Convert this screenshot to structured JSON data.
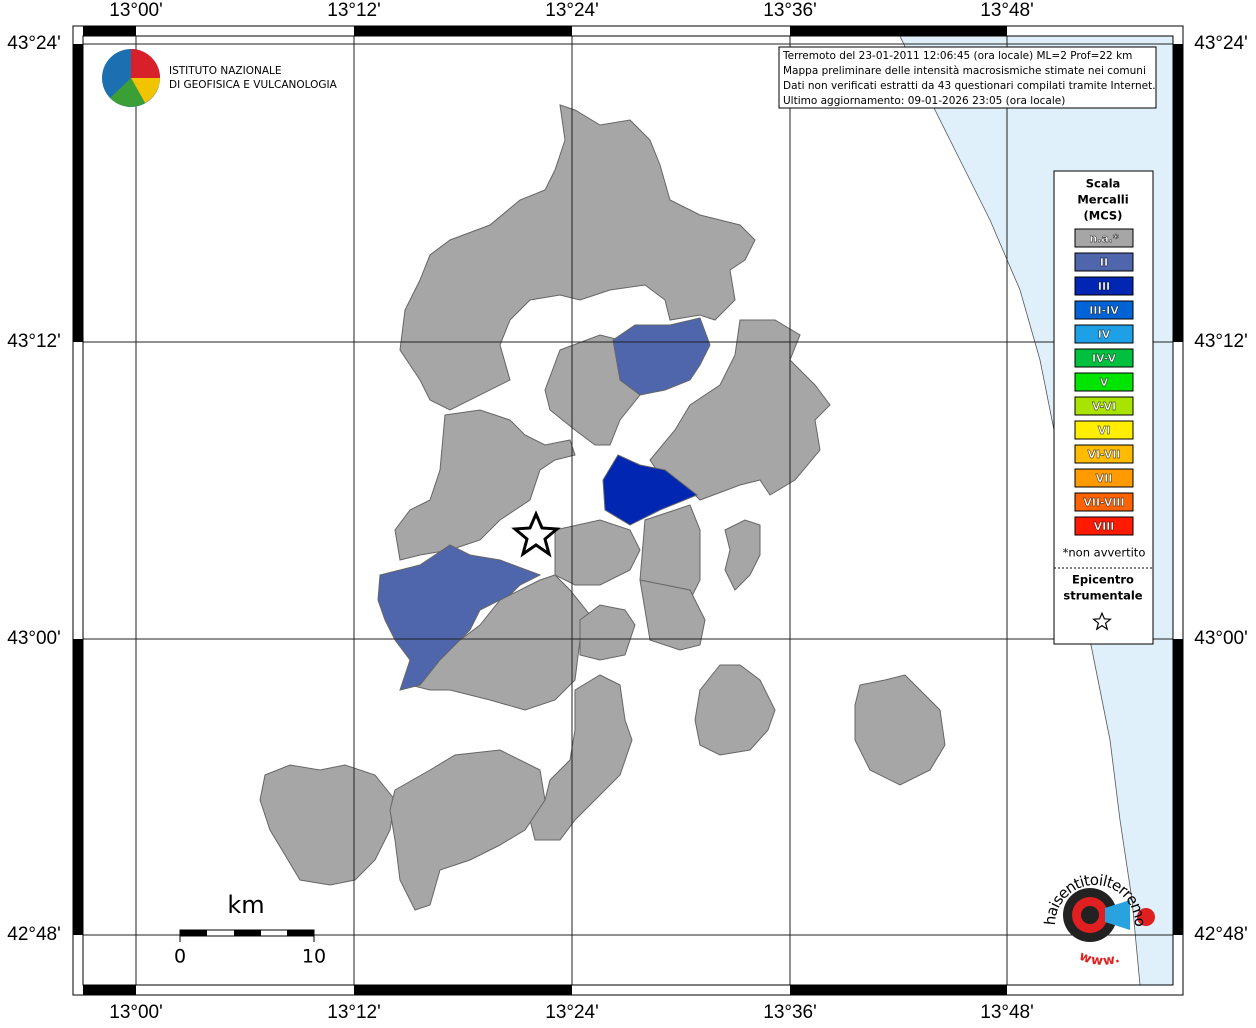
{
  "info": {
    "lines": [
      "Terremoto del 23-01-2011 12:06:45 (ora locale) ML=2 Prof=22 km",
      "Mappa preliminare delle intensità macrosismiche stimate nei comuni",
      "Dati non verificati estratti da 43 questionari compilati tramite Internet.",
      "Ultimo aggiornamento: 09-01-2026 23:05 (ora locale)"
    ]
  },
  "logo": {
    "line1": "ISTITUTO NAZIONALE",
    "line2": "DI GEOFISICA E VULCANOLOGIA"
  },
  "axes": {
    "longitudes": [
      "13°00'",
      "13°12'",
      "13°24'",
      "13°36'",
      "13°48'"
    ],
    "latitudes": [
      "43°24'",
      "43°12'",
      "43°00'",
      "42°48'"
    ]
  },
  "legend": {
    "title": [
      "Scala",
      "Mercalli",
      "(MCS)"
    ],
    "items": [
      {
        "label": "n.a.*",
        "color": "#a6a6a6"
      },
      {
        "label": "II",
        "color": "#4f65ac"
      },
      {
        "label": "III",
        "color": "#0026b2"
      },
      {
        "label": "III-IV",
        "color": "#0063d6"
      },
      {
        "label": "IV",
        "color": "#1ea0e6"
      },
      {
        "label": "IV-V",
        "color": "#00c040"
      },
      {
        "label": "V",
        "color": "#00e400"
      },
      {
        "label": "V-VI",
        "color": "#a8e400"
      },
      {
        "label": "VI",
        "color": "#ffee00"
      },
      {
        "label": "VI-VII",
        "color": "#ffbb00"
      },
      {
        "label": "VII",
        "color": "#ff9a00"
      },
      {
        "label": "VII-VIII",
        "color": "#ff6200"
      },
      {
        "label": "VIII",
        "color": "#ff1a00"
      }
    ],
    "note": "*non avvertito",
    "epicenter": [
      "Epicentro",
      "strumentale"
    ]
  },
  "scale_bar": {
    "unit": "km",
    "start": "0",
    "end": "10"
  },
  "badge": {
    "text": "haisentitoilterremoto.it",
    "www": "www."
  }
}
